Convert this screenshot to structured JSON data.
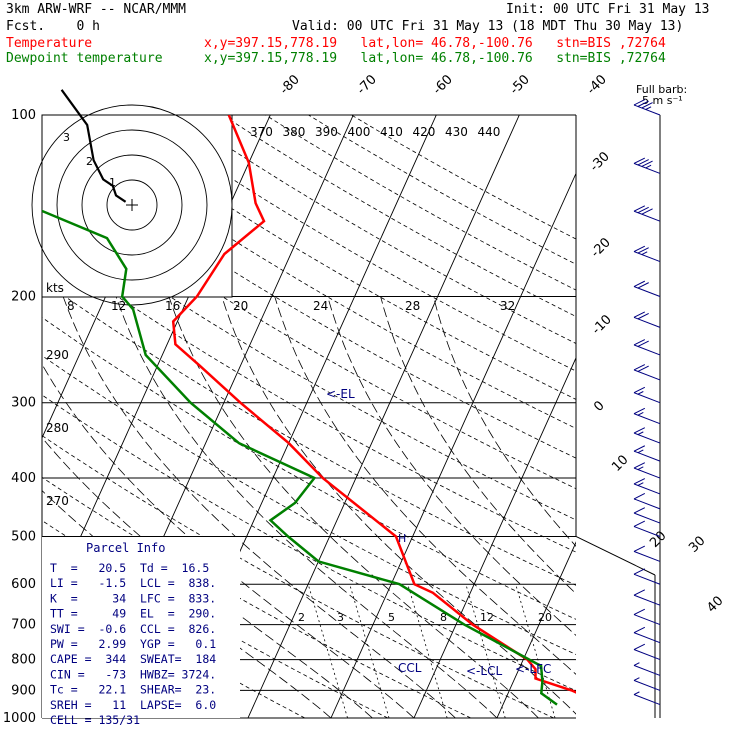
{
  "header": {
    "model": "3km ARW-WRF -- NCAR/MMM",
    "init": "Init: 00 UTC Fri 31 May 13",
    "fcst": "Fcst.    0 h",
    "valid": "Valid: 00 UTC Fri 31 May 13 (18 MDT Thu 30 May 13)",
    "temp_label": "Temperature",
    "temp_info": "x,y=397.15,778.19   lat,lon= 46.78,-100.76   stn=BIS ,72764",
    "dew_label": "Dewpoint temperature",
    "dew_info": "x,y=397.15,778.19   lat,lon= 46.78,-100.76   stn=BIS ,72764"
  },
  "colors": {
    "temperature": "#ff0000",
    "dewpoint": "#008000",
    "wind": "#000080",
    "info": "#000080"
  },
  "chart_data": {
    "type": "line",
    "ylabel": "",
    "pressure_ticks": [
      100,
      200,
      300,
      400,
      500,
      600,
      700,
      800,
      900,
      1000
    ],
    "isotherm_labels": [
      "-80",
      "-70",
      "-60",
      "-50",
      "-40",
      "-30",
      "-20",
      "-10",
      "0",
      "10",
      "20",
      "30",
      "40"
    ],
    "theta_labels_top": [
      "370",
      "380",
      "390",
      "400",
      "410",
      "420",
      "430",
      "440"
    ],
    "theta_labels_left": [
      "290",
      "280",
      "270"
    ],
    "mixing_ratio_labels": [
      "2",
      "3",
      "5",
      "8",
      "12",
      "20"
    ],
    "series": [
      {
        "name": "Temperature",
        "p": [
          950,
          900,
          860,
          830,
          800,
          700,
          620,
          600,
          500,
          400,
          350,
          300,
          260,
          240,
          220,
          200,
          170,
          150,
          140,
          120,
          100
        ],
        "t": [
          22.1,
          17.5,
          12.5,
          12.0,
          10.5,
          2.0,
          -4.5,
          -7.2,
          -12.0,
          -24.0,
          -30.0,
          -38.0,
          -45.0,
          -49.0,
          -50.5,
          -49.0,
          -48.0,
          -45.0,
          -47.0,
          -50.0,
          -55.0
        ]
      },
      {
        "name": "Dewpoint temperature",
        "p": [
          950,
          910,
          870,
          820,
          760,
          700,
          600,
          550,
          500,
          470,
          440,
          400,
          350,
          300,
          250,
          210,
          200,
          180,
          160,
          140,
          120,
          110,
          100
        ],
        "td": [
          16.5,
          14.0,
          13.5,
          12.5,
          7.0,
          1.0,
          -9.0,
          -20.0,
          -25.0,
          -28.0,
          -26.0,
          -25.0,
          -36.0,
          -44.0,
          -52.0,
          -56.0,
          -58.0,
          -59.0,
          -63.0,
          -75.0,
          -78.0,
          -77.0,
          -82.0
        ]
      }
    ],
    "annotations": [
      {
        "label": "<-EL",
        "p": 290
      },
      {
        "label": "CCL",
        "p": 826
      },
      {
        "label": "<-LCL",
        "p": 838
      },
      {
        "label": "<-LFC",
        "p": 833
      }
    ],
    "hodograph": {
      "label": "kts",
      "ring_labels": [
        "8",
        "12",
        "16",
        "20",
        "24",
        "28",
        "32"
      ],
      "points": [
        [
          -22,
          36
        ],
        [
          -14,
          25
        ],
        [
          -12,
          14
        ],
        [
          -9,
          8
        ],
        [
          -6,
          6
        ],
        [
          -5,
          3
        ],
        [
          -2,
          1
        ]
      ],
      "height_labels": [
        "3",
        "2",
        "1"
      ]
    },
    "wind_legend": {
      "line1": "Full barb:",
      "line2": "5 m s⁻¹"
    },
    "winds": [
      {
        "p": 100,
        "spd": 35
      },
      {
        "p": 125,
        "spd": 35
      },
      {
        "p": 150,
        "spd": 30
      },
      {
        "p": 175,
        "spd": 25
      },
      {
        "p": 200,
        "spd": 20
      },
      {
        "p": 225,
        "spd": 20
      },
      {
        "p": 250,
        "spd": 18
      },
      {
        "p": 275,
        "spd": 18
      },
      {
        "p": 300,
        "spd": 15
      },
      {
        "p": 325,
        "spd": 15
      },
      {
        "p": 350,
        "spd": 14
      },
      {
        "p": 375,
        "spd": 14
      },
      {
        "p": 400,
        "spd": 13
      },
      {
        "p": 425,
        "spd": 13
      },
      {
        "p": 450,
        "spd": 12
      },
      {
        "p": 475,
        "spd": 12
      },
      {
        "p": 500,
        "spd": 12
      },
      {
        "p": 550,
        "spd": 11
      },
      {
        "p": 600,
        "spd": 10
      },
      {
        "p": 650,
        "spd": 10
      },
      {
        "p": 700,
        "spd": 9
      },
      {
        "p": 750,
        "spd": 8
      },
      {
        "p": 800,
        "spd": 8
      },
      {
        "p": 850,
        "spd": 7
      },
      {
        "p": 900,
        "spd": 7
      },
      {
        "p": 950,
        "spd": 6
      }
    ]
  },
  "parcel": {
    "title": "Parcel Info",
    "rows": [
      "T  =   20.5  Td =  16.5",
      "LI =   -1.5  LCL =  838.",
      "K  =     34  LFC =  833.",
      "TT =     49  EL  =  290.",
      "SWI =  -0.6  CCL =  826.",
      "PW =   2.99  YGP =   0.1",
      "CAPE =  344  SWEAT=  184",
      "CIN =   -73  HWBZ= 3724.",
      "Tc =   22.1  SHEAR=  23.",
      "SREH =   11  LAPSE=  6.0",
      "CELL = 135/31"
    ]
  }
}
